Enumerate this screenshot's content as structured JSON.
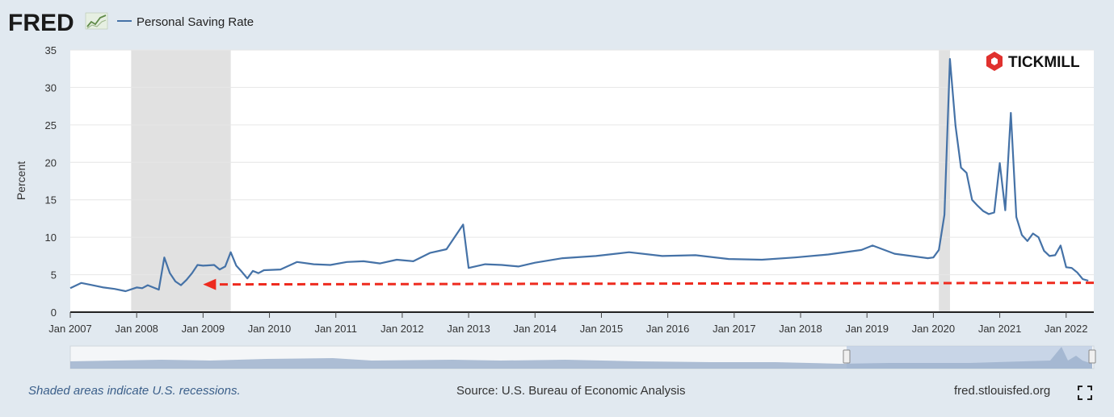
{
  "header": {
    "logo_text": "FRED",
    "series_name": "Personal Saving Rate"
  },
  "watermark": {
    "brand": "TICKMILL"
  },
  "footer": {
    "recession_note": "Shaded areas indicate U.S. recessions.",
    "source": "Source: U.S. Bureau of Economic Analysis",
    "site": "fred.stlouisfed.org"
  },
  "colors": {
    "series_line": "#4572a7",
    "recession_shade": "#e1e1e1",
    "annotation_arrow": "#ee2b1f",
    "tickmill_logo": "#e0312e",
    "background": "#e1e9f0"
  },
  "chart_data": {
    "type": "line",
    "ylabel": "Percent",
    "ylim": [
      0,
      35
    ],
    "yticks": [
      0,
      5,
      10,
      15,
      20,
      25,
      30,
      35
    ],
    "xlim": [
      "2007-01",
      "2022-06"
    ],
    "xticks": [
      {
        "date": "2007-01",
        "label": "Jan 2007"
      },
      {
        "date": "2008-01",
        "label": "Jan 2008"
      },
      {
        "date": "2009-01",
        "label": "Jan 2009"
      },
      {
        "date": "2010-01",
        "label": "Jan 2010"
      },
      {
        "date": "2011-01",
        "label": "Jan 2011"
      },
      {
        "date": "2012-01",
        "label": "Jan 2012"
      },
      {
        "date": "2013-01",
        "label": "Jan 2013"
      },
      {
        "date": "2014-01",
        "label": "Jan 2014"
      },
      {
        "date": "2015-01",
        "label": "Jan 2015"
      },
      {
        "date": "2016-01",
        "label": "Jan 2016"
      },
      {
        "date": "2017-01",
        "label": "Jan 2017"
      },
      {
        "date": "2018-01",
        "label": "Jan 2018"
      },
      {
        "date": "2019-01",
        "label": "Jan 2019"
      },
      {
        "date": "2020-01",
        "label": "Jan 2020"
      },
      {
        "date": "2021-01",
        "label": "Jan 2021"
      },
      {
        "date": "2022-01",
        "label": "Jan 2022"
      }
    ],
    "grid": true,
    "recessions": [
      {
        "start": "2007-12",
        "end": "2009-06"
      },
      {
        "start": "2020-02",
        "end": "2020-04"
      }
    ],
    "annotation": {
      "type": "dashed-arrow",
      "from": "2022-06",
      "to": "2009-01",
      "y": 3.7
    },
    "series": [
      {
        "name": "Personal Saving Rate",
        "x": [
          "2007-01",
          "2007-03",
          "2007-05",
          "2007-07",
          "2007-09",
          "2007-11",
          "2008-01",
          "2008-02",
          "2008-03",
          "2008-05",
          "2008-06",
          "2008-07",
          "2008-08",
          "2008-09",
          "2008-10",
          "2008-11",
          "2008-12",
          "2009-01",
          "2009-03",
          "2009-04",
          "2009-05",
          "2009-06",
          "2009-07",
          "2009-08",
          "2009-09",
          "2009-10",
          "2009-11",
          "2009-12",
          "2010-03",
          "2010-06",
          "2010-09",
          "2010-12",
          "2011-03",
          "2011-06",
          "2011-09",
          "2011-12",
          "2012-03",
          "2012-06",
          "2012-09",
          "2012-12",
          "2013-01",
          "2013-04",
          "2013-07",
          "2013-10",
          "2014-01",
          "2014-06",
          "2014-12",
          "2015-06",
          "2015-12",
          "2016-06",
          "2016-12",
          "2017-06",
          "2017-12",
          "2018-06",
          "2018-12",
          "2019-02",
          "2019-06",
          "2019-12",
          "2020-01",
          "2020-02",
          "2020-03",
          "2020-04",
          "2020-05",
          "2020-06",
          "2020-07",
          "2020-08",
          "2020-09",
          "2020-10",
          "2020-11",
          "2020-12",
          "2021-01",
          "2021-02",
          "2021-03",
          "2021-04",
          "2021-05",
          "2021-06",
          "2021-07",
          "2021-08",
          "2021-09",
          "2021-10",
          "2021-11",
          "2021-12",
          "2022-01",
          "2022-02",
          "2022-03",
          "2022-04",
          "2022-05"
        ],
        "values": [
          3.2,
          3.9,
          3.6,
          3.3,
          3.1,
          2.8,
          3.3,
          3.2,
          3.6,
          3.0,
          7.3,
          5.2,
          4.1,
          3.6,
          4.3,
          5.2,
          6.3,
          6.2,
          6.3,
          5.7,
          6.1,
          8.0,
          6.2,
          5.4,
          4.5,
          5.5,
          5.2,
          5.6,
          5.7,
          6.7,
          6.4,
          6.3,
          6.7,
          6.8,
          6.5,
          7.0,
          6.8,
          7.9,
          8.4,
          11.7,
          5.9,
          6.4,
          6.3,
          6.1,
          6.6,
          7.2,
          7.5,
          8.0,
          7.5,
          7.6,
          7.1,
          7.0,
          7.3,
          7.7,
          8.3,
          8.9,
          7.8,
          7.2,
          7.3,
          8.3,
          13.0,
          33.8,
          24.9,
          19.3,
          18.6,
          15.0,
          14.2,
          13.5,
          13.1,
          13.3,
          19.9,
          13.6,
          26.6,
          12.7,
          10.3,
          9.5,
          10.5,
          10.0,
          8.2,
          7.5,
          7.6,
          8.9,
          6.0,
          5.9,
          5.3,
          4.4,
          4.2
        ]
      }
    ]
  }
}
